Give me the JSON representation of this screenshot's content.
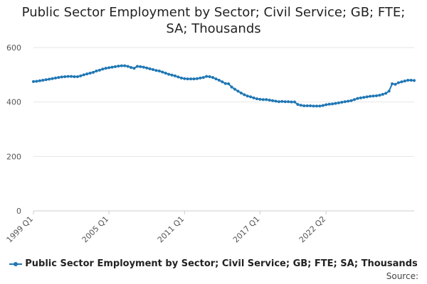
{
  "chart_data": {
    "type": "line",
    "title_lines": [
      "Public Sector Employment by Sector; Civil Service; GB; FTE;",
      "SA; Thousands"
    ],
    "xlabel": "",
    "ylabel": "",
    "ylim": [
      0,
      600
    ],
    "yticks": [
      0,
      200,
      400,
      600
    ],
    "x_tick_labels": [
      "1999 Q1",
      "2005 Q1",
      "2011 Q1",
      "2017 Q1",
      "2022 Q2"
    ],
    "grid": true,
    "legend_position": "bottom",
    "series": [
      {
        "name": "Public Sector Employment by Sector; Civil Service; GB; FTE; SA; Thousands",
        "color": "#1f77b4",
        "start": "1999 Q1",
        "frequency": "quarterly",
        "values": [
          475,
          476,
          478,
          480,
          482,
          484,
          486,
          488,
          490,
          492,
          493,
          494,
          494,
          493,
          493,
          496,
          500,
          503,
          506,
          509,
          514,
          517,
          521,
          524,
          526,
          528,
          530,
          532,
          533,
          533,
          531,
          527,
          524,
          531,
          530,
          528,
          525,
          522,
          519,
          516,
          514,
          510,
          506,
          502,
          499,
          496,
          492,
          488,
          486,
          485,
          485,
          485,
          486,
          488,
          490,
          494,
          493,
          490,
          485,
          480,
          474,
          468,
          467,
          455,
          447,
          440,
          433,
          427,
          422,
          419,
          415,
          412,
          410,
          409,
          409,
          407,
          405,
          403,
          401,
          402,
          401,
          401,
          400,
          400,
          391,
          388,
          386,
          386,
          386,
          385,
          385,
          385,
          387,
          390,
          392,
          393,
          395,
          397,
          399,
          401,
          403,
          405,
          409,
          413,
          415,
          417,
          419,
          421,
          422,
          423,
          425,
          428,
          432,
          440,
          467,
          465,
          471,
          474,
          477,
          480,
          480,
          479
        ]
      }
    ]
  },
  "source_label": "Source:"
}
